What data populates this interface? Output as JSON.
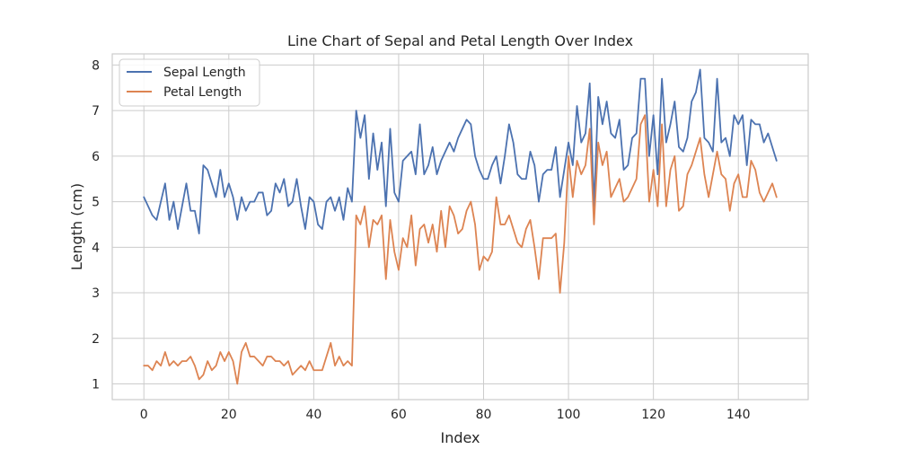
{
  "chart_data": {
    "type": "line",
    "title": "Line Chart of Sepal and Petal Length Over Index",
    "xlabel": "Index",
    "ylabel": "Length (cm)",
    "xlim": [
      -7.45,
      156.45
    ],
    "ylim": [
      0.655,
      8.245
    ],
    "xticks": [
      0,
      20,
      40,
      60,
      80,
      100,
      120,
      140
    ],
    "yticks": [
      1,
      2,
      3,
      4,
      5,
      6,
      7,
      8
    ],
    "grid": true,
    "legend_position": "top-left",
    "x": [
      0,
      1,
      2,
      3,
      4,
      5,
      6,
      7,
      8,
      9,
      10,
      11,
      12,
      13,
      14,
      15,
      16,
      17,
      18,
      19,
      20,
      21,
      22,
      23,
      24,
      25,
      26,
      27,
      28,
      29,
      30,
      31,
      32,
      33,
      34,
      35,
      36,
      37,
      38,
      39,
      40,
      41,
      42,
      43,
      44,
      45,
      46,
      47,
      48,
      49,
      50,
      51,
      52,
      53,
      54,
      55,
      56,
      57,
      58,
      59,
      60,
      61,
      62,
      63,
      64,
      65,
      66,
      67,
      68,
      69,
      70,
      71,
      72,
      73,
      74,
      75,
      76,
      77,
      78,
      79,
      80,
      81,
      82,
      83,
      84,
      85,
      86,
      87,
      88,
      89,
      90,
      91,
      92,
      93,
      94,
      95,
      96,
      97,
      98,
      99,
      100,
      101,
      102,
      103,
      104,
      105,
      106,
      107,
      108,
      109,
      110,
      111,
      112,
      113,
      114,
      115,
      116,
      117,
      118,
      119,
      120,
      121,
      122,
      123,
      124,
      125,
      126,
      127,
      128,
      129,
      130,
      131,
      132,
      133,
      134,
      135,
      136,
      137,
      138,
      139,
      140,
      141,
      142,
      143,
      144,
      145,
      146,
      147,
      148,
      149
    ],
    "series": [
      {
        "name": "Sepal Length",
        "color": "#4c72b0",
        "values": [
          5.1,
          4.9,
          4.7,
          4.6,
          5.0,
          5.4,
          4.6,
          5.0,
          4.4,
          4.9,
          5.4,
          4.8,
          4.8,
          4.3,
          5.8,
          5.7,
          5.4,
          5.1,
          5.7,
          5.1,
          5.4,
          5.1,
          4.6,
          5.1,
          4.8,
          5.0,
          5.0,
          5.2,
          5.2,
          4.7,
          4.8,
          5.4,
          5.2,
          5.5,
          4.9,
          5.0,
          5.5,
          4.9,
          4.4,
          5.1,
          5.0,
          4.5,
          4.4,
          5.0,
          5.1,
          4.8,
          5.1,
          4.6,
          5.3,
          5.0,
          7.0,
          6.4,
          6.9,
          5.5,
          6.5,
          5.7,
          6.3,
          4.9,
          6.6,
          5.2,
          5.0,
          5.9,
          6.0,
          6.1,
          5.6,
          6.7,
          5.6,
          5.8,
          6.2,
          5.6,
          5.9,
          6.1,
          6.3,
          6.1,
          6.4,
          6.6,
          6.8,
          6.7,
          6.0,
          5.7,
          5.5,
          5.5,
          5.8,
          6.0,
          5.4,
          6.0,
          6.7,
          6.3,
          5.6,
          5.5,
          5.5,
          6.1,
          5.8,
          5.0,
          5.6,
          5.7,
          5.7,
          6.2,
          5.1,
          5.7,
          6.3,
          5.8,
          7.1,
          6.3,
          6.5,
          7.6,
          4.9,
          7.3,
          6.7,
          7.2,
          6.5,
          6.4,
          6.8,
          5.7,
          5.8,
          6.4,
          6.5,
          7.7,
          7.7,
          6.0,
          6.9,
          5.6,
          7.7,
          6.3,
          6.7,
          7.2,
          6.2,
          6.1,
          6.4,
          7.2,
          7.4,
          7.9,
          6.4,
          6.3,
          6.1,
          7.7,
          6.3,
          6.4,
          6.0,
          6.9,
          6.7,
          6.9,
          5.8,
          6.8,
          6.7,
          6.7,
          6.3,
          6.5,
          6.2,
          5.9
        ]
      },
      {
        "name": "Petal Length",
        "color": "#dd8452",
        "values": [
          1.4,
          1.4,
          1.3,
          1.5,
          1.4,
          1.7,
          1.4,
          1.5,
          1.4,
          1.5,
          1.5,
          1.6,
          1.4,
          1.1,
          1.2,
          1.5,
          1.3,
          1.4,
          1.7,
          1.5,
          1.7,
          1.5,
          1.0,
          1.7,
          1.9,
          1.6,
          1.6,
          1.5,
          1.4,
          1.6,
          1.6,
          1.5,
          1.5,
          1.4,
          1.5,
          1.2,
          1.3,
          1.4,
          1.3,
          1.5,
          1.3,
          1.3,
          1.3,
          1.6,
          1.9,
          1.4,
          1.6,
          1.4,
          1.5,
          1.4,
          4.7,
          4.5,
          4.9,
          4.0,
          4.6,
          4.5,
          4.7,
          3.3,
          4.6,
          3.9,
          3.5,
          4.2,
          4.0,
          4.7,
          3.6,
          4.4,
          4.5,
          4.1,
          4.5,
          3.9,
          4.8,
          4.0,
          4.9,
          4.7,
          4.3,
          4.4,
          4.8,
          5.0,
          4.5,
          3.5,
          3.8,
          3.7,
          3.9,
          5.1,
          4.5,
          4.5,
          4.7,
          4.4,
          4.1,
          4.0,
          4.4,
          4.6,
          4.0,
          3.3,
          4.2,
          4.2,
          4.2,
          4.3,
          3.0,
          4.1,
          6.0,
          5.1,
          5.9,
          5.6,
          5.8,
          6.6,
          4.5,
          6.3,
          5.8,
          6.1,
          5.1,
          5.3,
          5.5,
          5.0,
          5.1,
          5.3,
          5.5,
          6.7,
          6.9,
          5.0,
          5.7,
          4.9,
          6.7,
          4.9,
          5.7,
          6.0,
          4.8,
          4.9,
          5.6,
          5.8,
          6.1,
          6.4,
          5.6,
          5.1,
          5.6,
          6.1,
          5.6,
          5.5,
          4.8,
          5.4,
          5.6,
          5.1,
          5.1,
          5.9,
          5.7,
          5.2,
          5.0,
          5.2,
          5.4,
          5.1
        ]
      }
    ]
  }
}
